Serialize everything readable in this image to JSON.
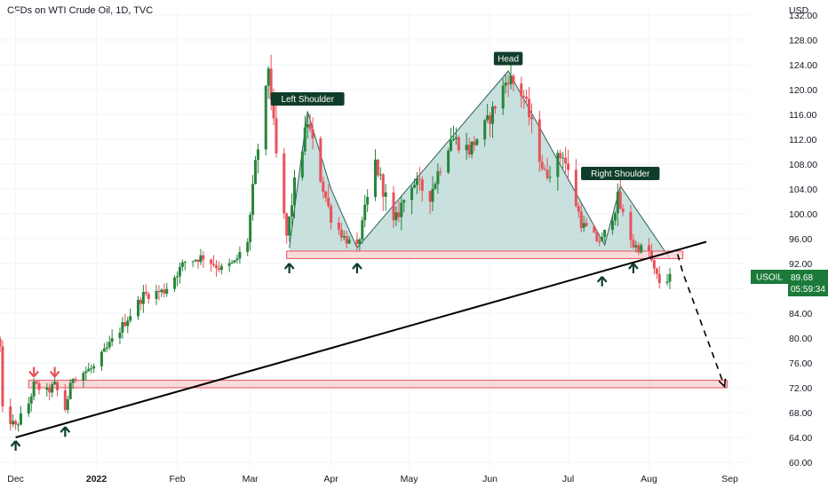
{
  "header": {
    "title": "CFDs on WTI Crude Oil, 1D, TVC",
    "currency": "USD"
  },
  "colors": {
    "up": "#26853b",
    "down": "#e8525b",
    "pattern_fill": "#b5d6d3",
    "zone_fill": "#f9d2d3",
    "zone_stroke": "#e8525b",
    "trendline": "#000000",
    "label_bg": "#0f3d2a",
    "badge_bg": "#1b7a3a",
    "arrow_up": "#0f3d2a",
    "arrow_down": "#e8525b"
  },
  "price_badge": {
    "symbol": "USOIL",
    "price": "89.68",
    "countdown": "05:59:34"
  },
  "annotations": {
    "left_shoulder": "Left Shoulder",
    "head": "Head",
    "right_shoulder": "Right Shoulder"
  },
  "chart_data": {
    "type": "candlestick",
    "x_axis": {
      "labels": [
        "Dec",
        "2022",
        "Feb",
        "Mar",
        "Apr",
        "May",
        "Jun",
        "Jul",
        "Aug",
        "Sep"
      ],
      "range": [
        "2021-11-25",
        "2022-09-08"
      ]
    },
    "y_axis": {
      "ticks": [
        60,
        64,
        68,
        72,
        76,
        80,
        84,
        88,
        92,
        96,
        100,
        104,
        108,
        112,
        116,
        120,
        124,
        128,
        132
      ],
      "tick_labels": [
        "60.00",
        "64.00",
        "68.00",
        "72.00",
        "76.00",
        "80.00",
        "84.00",
        "88.00",
        "92.00",
        "96.00",
        "100.00",
        "104.00",
        "108.00",
        "112.00",
        "116.00",
        "120.00",
        "124.00",
        "128.00",
        "132.00"
      ],
      "range": [
        59,
        133
      ],
      "position": "right"
    },
    "close_path": [
      [
        "2021-11-25",
        78.4
      ],
      [
        "2021-11-26",
        68.2
      ],
      [
        "2021-12-01",
        65.6
      ],
      [
        "2021-12-02",
        66.5
      ],
      [
        "2021-12-06",
        69.5
      ],
      [
        "2021-12-08",
        72.4
      ],
      [
        "2021-12-13",
        71.3
      ],
      [
        "2021-12-16",
        72.4
      ],
      [
        "2021-12-20",
        68.6
      ],
      [
        "2021-12-23",
        73.8
      ],
      [
        "2021-12-31",
        75.2
      ],
      [
        "2022-01-06",
        78.9
      ],
      [
        "2022-01-12",
        82.6
      ],
      [
        "2022-01-19",
        86.9
      ],
      [
        "2022-01-27",
        87.6
      ],
      [
        "2022-02-04",
        92.3
      ],
      [
        "2022-02-11",
        93.1
      ],
      [
        "2022-02-18",
        91.1
      ],
      [
        "2022-02-23",
        92.1
      ],
      [
        "2022-02-28",
        95.7
      ],
      [
        "2022-03-03",
        107.7
      ],
      [
        "2022-03-07",
        119.4
      ],
      [
        "2022-03-08",
        123.7
      ],
      [
        "2022-03-11",
        109.3
      ],
      [
        "2022-03-15",
        96.4
      ],
      [
        "2022-03-18",
        104.7
      ],
      [
        "2022-03-23",
        114.9
      ],
      [
        "2022-03-28",
        105.9
      ],
      [
        "2022-04-01",
        99.3
      ],
      [
        "2022-04-06",
        96.2
      ],
      [
        "2022-04-11",
        94.3
      ],
      [
        "2022-04-18",
        108.2
      ],
      [
        "2022-04-25",
        98.5
      ],
      [
        "2022-05-02",
        105.2
      ],
      [
        "2022-05-09",
        103.1
      ],
      [
        "2022-05-17",
        112.4
      ],
      [
        "2022-05-24",
        110.3
      ],
      [
        "2022-05-31",
        114.7
      ],
      [
        "2022-06-08",
        122.1
      ],
      [
        "2022-06-14",
        118.9
      ],
      [
        "2022-06-22",
        106.2
      ],
      [
        "2022-06-29",
        109.8
      ],
      [
        "2022-07-06",
        98.5
      ],
      [
        "2022-07-12",
        95.8
      ],
      [
        "2022-07-14",
        95.8
      ],
      [
        "2022-07-20",
        102.3
      ],
      [
        "2022-07-26",
        94.9
      ],
      [
        "2022-08-01",
        93.9
      ],
      [
        "2022-08-03",
        90.7
      ],
      [
        "2022-08-05",
        89.0
      ],
      [
        "2022-08-09",
        89.7
      ]
    ],
    "zones": [
      {
        "from": "2022-03-15",
        "to": "2022-08-14",
        "low": 92.8,
        "high": 94.0
      },
      {
        "from": "2021-12-06",
        "to": "2022-08-31",
        "low": 72.0,
        "high": 73.2
      }
    ],
    "trendline": {
      "from": [
        "2021-12-01",
        64.0
      ],
      "to": [
        "2022-08-23",
        95.5
      ]
    },
    "projection": [
      [
        "2022-08-12",
        93.5
      ],
      [
        "2022-08-14",
        90.5
      ],
      [
        "2022-08-30",
        72.2
      ]
    ],
    "pattern_outline": [
      [
        "2022-03-16",
        94.5
      ],
      [
        "2022-03-23",
        116.5
      ],
      [
        "2022-04-01",
        104.0
      ],
      [
        "2022-04-11",
        94.5
      ],
      [
        "2022-06-08",
        123.0
      ],
      [
        "2022-07-15",
        95.0
      ],
      [
        "2022-07-21",
        104.5
      ],
      [
        "2022-08-09",
        92.8
      ]
    ],
    "up_arrows": [
      "2021-12-01",
      "2021-12-20",
      "2022-03-16",
      "2022-04-11",
      "2022-07-14",
      "2022-07-26"
    ],
    "down_arrows": [
      "2021-12-08",
      "2021-12-16"
    ],
    "labels_at": {
      "left_shoulder": [
        "2022-03-23",
        116.5
      ],
      "head": [
        "2022-06-08",
        123.0
      ],
      "right_shoulder": [
        "2022-07-21",
        104.5
      ]
    }
  }
}
